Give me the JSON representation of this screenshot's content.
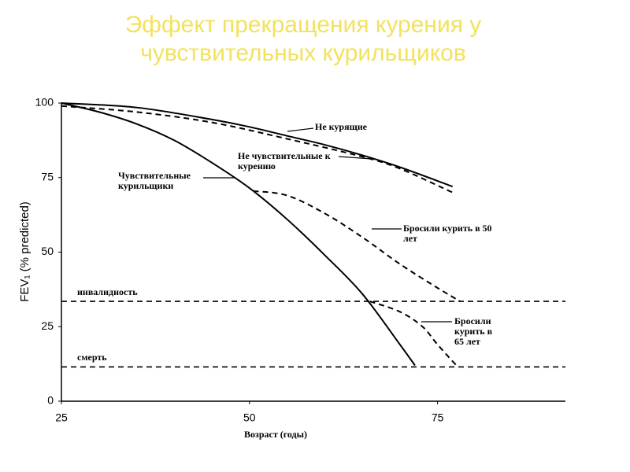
{
  "chart_data": {
    "type": "line",
    "title": "Эффект прекращения курения у чувствительных курильщиков",
    "x_label": "Возраст (годы)",
    "y_label": "FEV₁ (% predicted)",
    "xlim": [
      25,
      92
    ],
    "xticks": [
      25,
      50,
      75
    ],
    "ylim": [
      0,
      100
    ],
    "yticks": [
      0,
      25,
      50,
      75,
      100
    ],
    "grid": false,
    "series": [
      {
        "name": "Не курящие",
        "color": "#000000",
        "dash": false,
        "x": [
          25,
          35,
          45,
          50,
          55,
          60,
          65,
          70,
          77
        ],
        "values": [
          100,
          98.5,
          94.5,
          92,
          89,
          86,
          82.5,
          78.5,
          72
        ]
      },
      {
        "name": "Не чувствительные к курению",
        "color": "#000000",
        "dash": true,
        "x": [
          25,
          35,
          45,
          55,
          65,
          70,
          77
        ],
        "values": [
          99,
          97,
          93.5,
          88,
          82,
          78,
          70
        ]
      },
      {
        "name": "Чувствительные курильщики",
        "color": "#000000",
        "dash": false,
        "x": [
          25,
          30,
          35,
          40,
          45,
          50,
          55,
          60,
          65,
          70,
          72
        ],
        "values": [
          100,
          97,
          93,
          87.5,
          80,
          71.5,
          61,
          49,
          36,
          19,
          12
        ]
      },
      {
        "name": "Бросили курить в 50 лет",
        "color": "#000000",
        "dash": true,
        "x": [
          50.5,
          55,
          60,
          65,
          70,
          75,
          78
        ],
        "values": [
          70.5,
          69,
          63,
          55,
          46,
          38,
          33.5
        ]
      },
      {
        "name": "Бросили курить в 65 лет",
        "color": "#000000",
        "dash": true,
        "x": [
          66,
          70,
          73,
          75,
          77.5
        ],
        "values": [
          33.5,
          30,
          25,
          19,
          12
        ]
      }
    ],
    "reference_lines": [
      {
        "label": "инвалидность",
        "value": 33.5
      },
      {
        "label": "смерть",
        "value": 11.5
      }
    ]
  }
}
